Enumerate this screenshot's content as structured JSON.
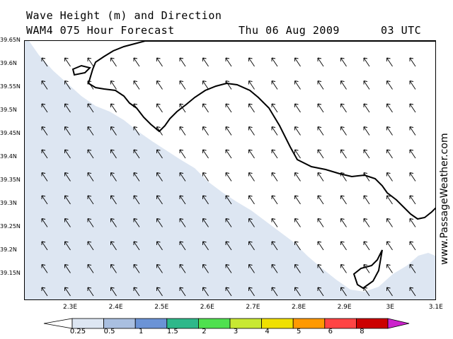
{
  "header": {
    "title": "Wave Height (m) and Direction",
    "model": "WAM4 075 Hour Forecast",
    "date": "Thu 06 Aug 2009",
    "time": "03 UTC"
  },
  "watermark": "www.PassageWeather.com",
  "map": {
    "lat_range": [
      39.1,
      39.65
    ],
    "lon_range": [
      2.2,
      3.1
    ],
    "lat_labels": [
      "39.65N",
      "39.6N",
      "39.55N",
      "39.5N",
      "39.45N",
      "39.4N",
      "39.35N",
      "39.3N",
      "39.25N",
      "39.2N",
      "39.15N"
    ],
    "lon_labels": [
      "2.3E",
      "2.4E",
      "2.5E",
      "2.6E",
      "2.7E",
      "2.8E",
      "2.9E",
      "3E",
      "3.1E"
    ],
    "land_color": "#ffffff",
    "sea_shaded_color": "#dde6f2",
    "sea_shaded_level": "0.25-0.5",
    "arrow_direction": "northwest"
  },
  "legend": {
    "labels": [
      "0.25",
      "0.5",
      "1",
      "1.5",
      "2",
      "3",
      "4",
      "5",
      "6",
      "8"
    ],
    "colors": [
      "#ffffff",
      "#dde6f2",
      "#a9bfe0",
      "#6b93d6",
      "#2eb88a",
      "#4fe04f",
      "#c8e832",
      "#f0e000",
      "#ff9900",
      "#ff4444",
      "#cc0000",
      "#cc22cc"
    ]
  }
}
